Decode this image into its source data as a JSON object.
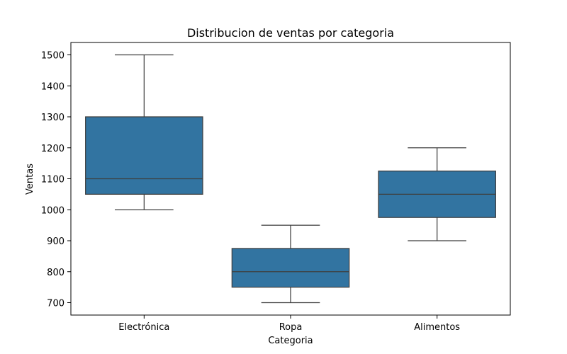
{
  "chart_data": {
    "type": "box",
    "title": "Distribucion de ventas por categoria",
    "xlabel": "Categoria",
    "ylabel": "Ventas",
    "categories": [
      "Electrónica",
      "Ropa",
      "Alimentos"
    ],
    "boxes": [
      {
        "category": "Electrónica",
        "min": 1000,
        "q1": 1050,
        "median": 1100,
        "q3": 1300,
        "max": 1500
      },
      {
        "category": "Ropa",
        "min": 700,
        "q1": 750,
        "median": 800,
        "q3": 875,
        "max": 950
      },
      {
        "category": "Alimentos",
        "min": 900,
        "q1": 975,
        "median": 1050,
        "q3": 1125,
        "max": 1200
      }
    ],
    "ylim": [
      660,
      1540
    ],
    "yticks": [
      700,
      800,
      900,
      1000,
      1100,
      1200,
      1300,
      1400,
      1500
    ],
    "grid": false,
    "legend": "none",
    "box_color": "#3274a1",
    "line_color": "#3f3f3f"
  }
}
